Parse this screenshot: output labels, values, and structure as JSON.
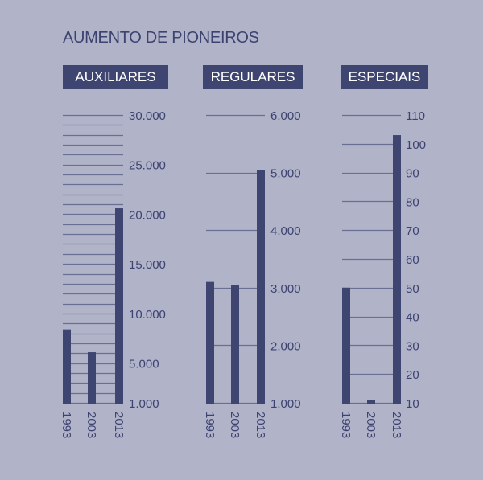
{
  "title": "AUMENTO DE PIONEIROS",
  "colors": {
    "background": "#b1b3c9",
    "bar": "#3e4570",
    "grid": "#6a6f94",
    "text": "#3d4370"
  },
  "chart_data": [
    {
      "type": "bar",
      "title": "AUXILIARES",
      "categories": [
        "1993",
        "2003",
        "2013"
      ],
      "values": [
        8400,
        6100,
        20600
      ],
      "xlabel": "",
      "ylabel": "",
      "ylim": [
        1000,
        30000
      ],
      "yticks": [
        "1.000",
        "5.000",
        "10.000",
        "15.000",
        "20.000",
        "25.000",
        "30.000"
      ],
      "grid_step": 1000
    },
    {
      "type": "bar",
      "title": "REGULARES",
      "categories": [
        "1993",
        "2003",
        "2013"
      ],
      "values": [
        3100,
        3050,
        5050
      ],
      "xlabel": "",
      "ylabel": "",
      "ylim": [
        1000,
        6000
      ],
      "yticks": [
        "1.000",
        "2.000",
        "3.000",
        "4.000",
        "5.000",
        "6.000"
      ],
      "grid_step": 1000
    },
    {
      "type": "bar",
      "title": "ESPECIAIS",
      "categories": [
        "1993",
        "2003",
        "2013"
      ],
      "values": [
        50,
        11,
        103
      ],
      "xlabel": "",
      "ylabel": "",
      "ylim": [
        10,
        110
      ],
      "yticks": [
        "10",
        "20",
        "30",
        "40",
        "50",
        "60",
        "70",
        "80",
        "90",
        "100",
        "110"
      ],
      "grid_step": 10
    }
  ]
}
